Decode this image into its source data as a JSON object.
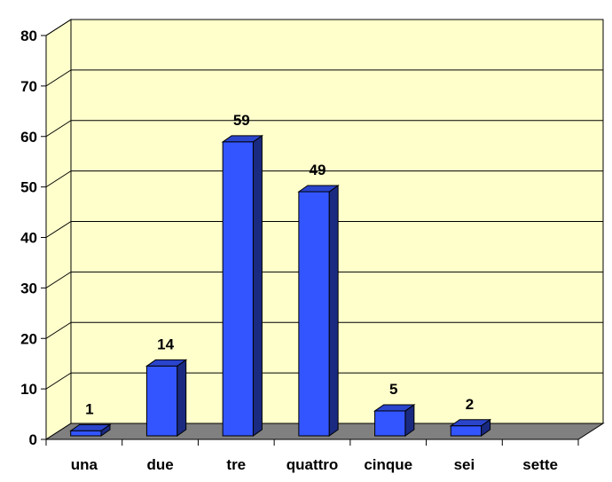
{
  "chart_data": {
    "type": "bar",
    "categories": [
      "una",
      "due",
      "tre",
      "quattro",
      "cinque",
      "sei",
      "sette"
    ],
    "values": [
      1,
      14,
      59,
      49,
      5,
      2,
      0
    ],
    "data_labels": [
      "1",
      "14",
      "59",
      "49",
      "5",
      "2",
      ""
    ],
    "ylim": [
      0,
      80
    ],
    "yticks": [
      0,
      10,
      20,
      30,
      40,
      50,
      60,
      70,
      80
    ],
    "grid": true,
    "legend": "none",
    "title": "",
    "xlabel": "",
    "ylabel": "",
    "colors": {
      "bar_front": "#3355ff",
      "bar_top": "#2a44cc",
      "bar_side": "#1a2a80",
      "back_wall": "#ffffcc",
      "side_wall": "#ffffcc",
      "floor": "#808080",
      "grid": "#000000"
    }
  }
}
